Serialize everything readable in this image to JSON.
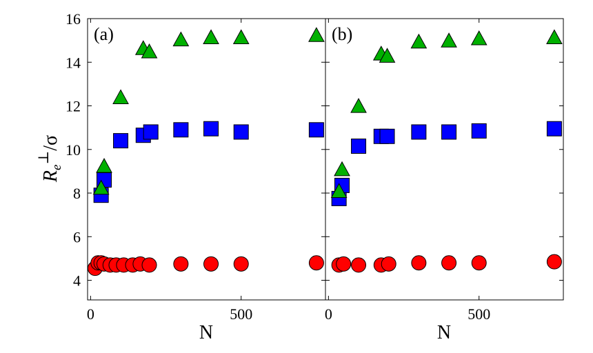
{
  "chart_data": [
    {
      "type": "scatter",
      "panel_label": "(a)",
      "xlabel": "N",
      "ylabel": {
        "main": "R",
        "subscript": "e",
        "superscript": "⊥",
        "suffix": "/σ"
      },
      "xlim": [
        -10,
        780
      ],
      "ylim": [
        3.1,
        16
      ],
      "x_ticks": [
        0,
        500
      ],
      "y_ticks": [
        4,
        6,
        8,
        10,
        12,
        14,
        16
      ],
      "series": [
        {
          "name": "circles",
          "marker": "circle",
          "color": "#ff0000",
          "x": [
            15,
            25,
            35,
            45,
            65,
            85,
            110,
            140,
            165,
            195,
            300,
            400,
            500,
            750
          ],
          "y": [
            4.55,
            4.8,
            4.8,
            4.75,
            4.7,
            4.7,
            4.7,
            4.7,
            4.75,
            4.7,
            4.75,
            4.75,
            4.75,
            4.8
          ]
        },
        {
          "name": "squares",
          "marker": "square",
          "color": "#0000ff",
          "x": [
            35,
            45,
            100,
            175,
            200,
            300,
            400,
            500,
            750
          ],
          "y": [
            7.9,
            8.6,
            10.4,
            10.65,
            10.8,
            10.9,
            10.95,
            10.8,
            10.9
          ]
        },
        {
          "name": "triangles",
          "marker": "triangle",
          "color": "#00b000",
          "x": [
            35,
            45,
            100,
            175,
            195,
            300,
            400,
            500,
            750
          ],
          "y": [
            8.2,
            9.2,
            12.35,
            14.6,
            14.45,
            15.0,
            15.1,
            15.1,
            15.2
          ]
        }
      ]
    },
    {
      "type": "scatter",
      "panel_label": "(b)",
      "xlabel": "N",
      "xlim": [
        -10,
        780
      ],
      "ylim": [
        3.1,
        16
      ],
      "x_ticks": [
        0,
        500
      ],
      "y_ticks": [
        4,
        6,
        8,
        10,
        12,
        14,
        16
      ],
      "series": [
        {
          "name": "circles",
          "marker": "circle",
          "color": "#ff0000",
          "x": [
            35,
            50,
            100,
            175,
            200,
            300,
            400,
            500,
            750
          ],
          "y": [
            4.7,
            4.75,
            4.7,
            4.7,
            4.75,
            4.8,
            4.8,
            4.8,
            4.85
          ]
        },
        {
          "name": "squares",
          "marker": "square",
          "color": "#0000ff",
          "x": [
            35,
            45,
            100,
            175,
            195,
            300,
            400,
            500,
            750
          ],
          "y": [
            7.75,
            8.35,
            10.15,
            10.6,
            10.6,
            10.8,
            10.8,
            10.85,
            10.95
          ]
        },
        {
          "name": "triangles",
          "marker": "triangle",
          "color": "#00b000",
          "x": [
            35,
            45,
            100,
            175,
            195,
            300,
            400,
            500,
            750
          ],
          "y": [
            8.05,
            9.05,
            11.95,
            14.35,
            14.25,
            14.9,
            14.95,
            15.05,
            15.1
          ]
        }
      ]
    }
  ]
}
